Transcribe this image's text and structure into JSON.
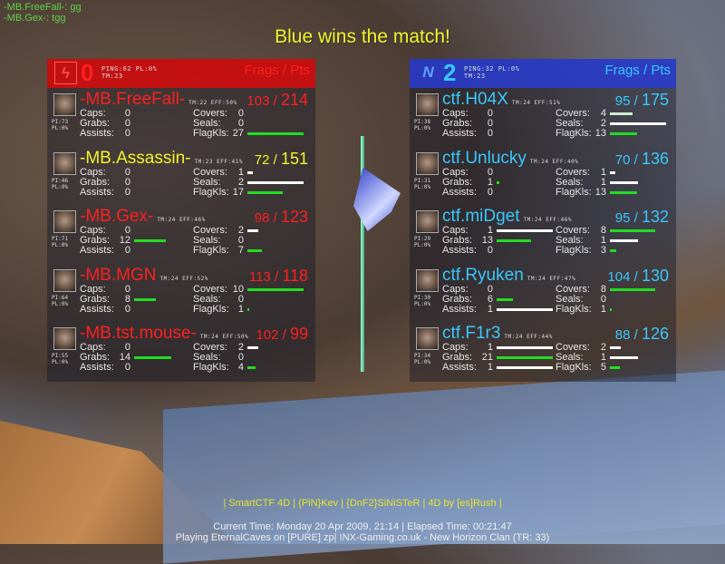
{
  "chat": [
    {
      "text": "-MB.FreeFall-: gg"
    },
    {
      "text": "-MB.Gex-: tgg"
    }
  ],
  "title": "Blue wins the match!",
  "colors": {
    "red": "#ff2020",
    "blue": "#39c8ff",
    "yellow": "#f3f32a",
    "bar_green": "#22dd22",
    "bar_white": "#ffffff"
  },
  "stat_labels": {
    "caps": "Caps:",
    "grabs": "Grabs:",
    "assists": "Assists:",
    "covers": "Covers:",
    "seals": "Seals:",
    "flagkls": "FlagKls:"
  },
  "teams": [
    {
      "id": "red",
      "logo_icon": "red-team-lightning-icon",
      "logo": "ϟ",
      "score": "0",
      "ping": "PING:62 PL:0%",
      "time": "TM:23",
      "header": "Frags / Pts",
      "players": [
        {
          "name": "-MB.FreeFall-",
          "info": "TM:22 EFF:50%",
          "pi": "PI:73",
          "pl": "PL:0%",
          "frags": "103",
          "pts": "214",
          "highlight": false,
          "caps": 0,
          "grabs": 0,
          "assists": 0,
          "covers": 0,
          "seals": 0,
          "flagkls": 27
        },
        {
          "name": "-MB.Assassin-",
          "info": "TM:23 EFF:41%",
          "pi": "PI:46",
          "pl": "PL:0%",
          "frags": "72",
          "pts": "151",
          "highlight": true,
          "caps": 0,
          "grabs": 0,
          "assists": 0,
          "covers": 1,
          "seals": 2,
          "flagkls": 17
        },
        {
          "name": "-MB.Gex-",
          "info": "TM:24 EFF:46%",
          "pi": "PI:71",
          "pl": "PL:0%",
          "frags": "98",
          "pts": "123",
          "highlight": false,
          "caps": 0,
          "grabs": 12,
          "assists": 0,
          "covers": 2,
          "seals": 0,
          "flagkls": 7
        },
        {
          "name": "-MB.MGN",
          "info": "TM:24 EFF:52%",
          "pi": "PI:64",
          "pl": "PL:0%",
          "frags": "113",
          "pts": "118",
          "highlight": false,
          "caps": 0,
          "grabs": 8,
          "assists": 0,
          "covers": 10,
          "seals": 0,
          "flagkls": 1
        },
        {
          "name": "-MB.tst.mouse-",
          "info": "TM:24 EFF:50%",
          "pi": "PI:55",
          "pl": "PL:0%",
          "frags": "102",
          "pts": "99",
          "highlight": false,
          "caps": 0,
          "grabs": 14,
          "assists": 0,
          "covers": 2,
          "seals": 0,
          "flagkls": 4
        }
      ]
    },
    {
      "id": "blue",
      "logo_icon": "blue-team-n-icon",
      "logo": "N",
      "score": "2",
      "ping": "PING:32 PL:0%",
      "time": "TM:23",
      "header": "Frags / Pts",
      "players": [
        {
          "name": "ctf.H04X",
          "info": "TM:24 EFF:51%",
          "pi": "PI:38",
          "pl": "PL:0%",
          "frags": "95",
          "pts": "175",
          "highlight": false,
          "caps": 0,
          "grabs": 0,
          "assists": 0,
          "covers": 4,
          "seals": 2,
          "flagkls": 13
        },
        {
          "name": "ctf.Unlucky",
          "info": "TM:24 EFF:40%",
          "pi": "PI:31",
          "pl": "PL:0%",
          "frags": "70",
          "pts": "136",
          "highlight": false,
          "caps": 0,
          "grabs": 1,
          "assists": 0,
          "covers": 1,
          "seals": 1,
          "flagkls": 13
        },
        {
          "name": "ctf.miDget",
          "info": "TM:24 EFF:46%",
          "pi": "PI:29",
          "pl": "PL:0%",
          "frags": "95",
          "pts": "132",
          "highlight": false,
          "caps": 1,
          "grabs": 13,
          "assists": 0,
          "covers": 8,
          "seals": 1,
          "flagkls": 3
        },
        {
          "name": "ctf.Ryuken",
          "info": "TM:24 EFF:47%",
          "pi": "PI:30",
          "pl": "PL:0%",
          "frags": "104",
          "pts": "130",
          "highlight": false,
          "caps": 0,
          "grabs": 6,
          "assists": 1,
          "covers": 8,
          "seals": 0,
          "flagkls": 1
        },
        {
          "name": "ctf.F1r3",
          "info": "TM:24 EFF:44%",
          "pi": "PI:34",
          "pl": "PL:0%",
          "frags": "88",
          "pts": "126",
          "highlight": false,
          "caps": 1,
          "grabs": 21,
          "assists": 1,
          "covers": 2,
          "seals": 1,
          "flagkls": 5
        }
      ]
    }
  ],
  "footer": {
    "credits": "| SmartCTF 4D | {PiN}Kev | {DnF2}SiNiSTeR | 4D by [es]Rush |",
    "time": "Current Time: Monday 20 Apr 2009, 21:14 | Elapsed Time: 00:21:47",
    "server": "Playing EternalCaves on [PURE] zp| INX-Gaming.co.uk - New Horizon Clan  (TR: 33)"
  }
}
